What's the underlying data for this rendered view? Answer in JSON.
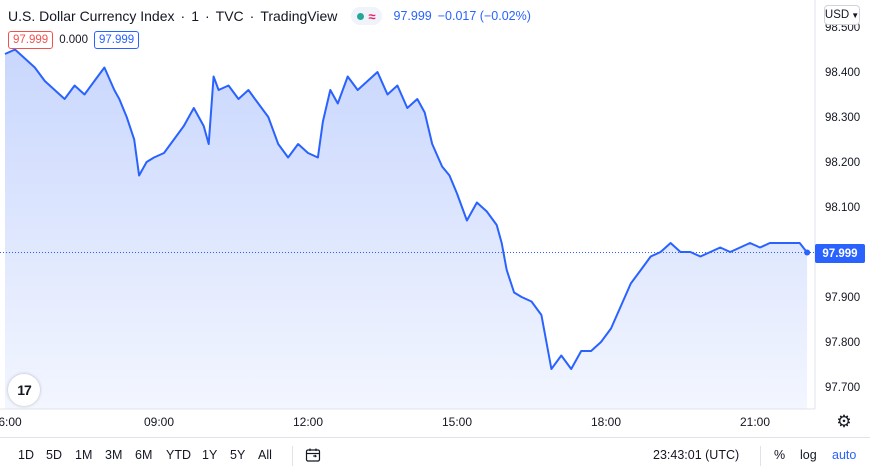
{
  "header": {
    "symbol": "U.S. Dollar Currency Index",
    "interval": "1",
    "exchange": "TVC",
    "source": "TradingView",
    "separator": "·",
    "status_icons": [
      "green-dot-icon",
      "wave-icon"
    ],
    "last_price": "97.999",
    "change": "−0.017 (−0.02%)"
  },
  "ohlc_boxes": {
    "bid": "97.999",
    "spread": "0.000",
    "ask": "97.999"
  },
  "currency": {
    "label": "USD",
    "icon": "chevron-down-icon"
  },
  "last_price_tag": "97.999",
  "colors": {
    "line": "#2962ff",
    "area_top": "#c9d7fd",
    "area_bottom": "#f3f6ff",
    "text": "#131722"
  },
  "toolbar": {
    "ranges": [
      "1D",
      "5D",
      "1M",
      "3M",
      "6M",
      "YTD",
      "1Y",
      "5Y",
      "All"
    ],
    "calendar_icon": "calendar-icon",
    "clock": "23:43:01 (UTC)",
    "percent": "%",
    "log": "log",
    "auto": "auto"
  },
  "chart_data": {
    "type": "area",
    "y_axis_labels": [
      "98.500",
      "98.400",
      "98.300",
      "98.200",
      "98.100",
      "97.999",
      "97.900",
      "97.800",
      "97.700"
    ],
    "x_axis_labels": [
      "6:00",
      "09:00",
      "12:00",
      "15:00",
      "18:00",
      "21:00"
    ],
    "ylim": [
      97.66,
      98.51
    ],
    "x_range_hours": [
      5.9,
      22.1
    ],
    "last_value": 97.999,
    "series": [
      {
        "points": [
          [
            5.9,
            98.44
          ],
          [
            6.1,
            98.45
          ],
          [
            6.3,
            98.43
          ],
          [
            6.5,
            98.41
          ],
          [
            6.7,
            98.38
          ],
          [
            6.9,
            98.36
          ],
          [
            7.1,
            98.34
          ],
          [
            7.3,
            98.37
          ],
          [
            7.5,
            98.35
          ],
          [
            7.7,
            98.38
          ],
          [
            7.9,
            98.41
          ],
          [
            8.1,
            98.36
          ],
          [
            8.2,
            98.34
          ],
          [
            8.35,
            98.3
          ],
          [
            8.5,
            98.25
          ],
          [
            8.6,
            98.17
          ],
          [
            8.75,
            98.2
          ],
          [
            8.9,
            98.21
          ],
          [
            9.1,
            98.22
          ],
          [
            9.3,
            98.25
          ],
          [
            9.5,
            98.28
          ],
          [
            9.7,
            98.32
          ],
          [
            9.9,
            98.28
          ],
          [
            10.0,
            98.24
          ],
          [
            10.1,
            98.39
          ],
          [
            10.2,
            98.36
          ],
          [
            10.4,
            98.37
          ],
          [
            10.6,
            98.34
          ],
          [
            10.8,
            98.36
          ],
          [
            11.0,
            98.33
          ],
          [
            11.2,
            98.3
          ],
          [
            11.4,
            98.24
          ],
          [
            11.6,
            98.21
          ],
          [
            11.8,
            98.24
          ],
          [
            12.0,
            98.22
          ],
          [
            12.2,
            98.21
          ],
          [
            12.3,
            98.29
          ],
          [
            12.45,
            98.36
          ],
          [
            12.6,
            98.33
          ],
          [
            12.8,
            98.39
          ],
          [
            13.0,
            98.36
          ],
          [
            13.2,
            98.38
          ],
          [
            13.4,
            98.4
          ],
          [
            13.6,
            98.35
          ],
          [
            13.8,
            98.37
          ],
          [
            14.0,
            98.32
          ],
          [
            14.2,
            98.34
          ],
          [
            14.35,
            98.31
          ],
          [
            14.5,
            98.24
          ],
          [
            14.7,
            98.19
          ],
          [
            14.85,
            98.17
          ],
          [
            15.0,
            98.13
          ],
          [
            15.2,
            98.07
          ],
          [
            15.4,
            98.11
          ],
          [
            15.6,
            98.09
          ],
          [
            15.8,
            98.06
          ],
          [
            15.9,
            98.02
          ],
          [
            16.0,
            97.96
          ],
          [
            16.15,
            97.91
          ],
          [
            16.3,
            97.9
          ],
          [
            16.5,
            97.89
          ],
          [
            16.7,
            97.86
          ],
          [
            16.8,
            97.8
          ],
          [
            16.9,
            97.74
          ],
          [
            17.1,
            97.77
          ],
          [
            17.3,
            97.74
          ],
          [
            17.5,
            97.78
          ],
          [
            17.7,
            97.78
          ],
          [
            17.9,
            97.8
          ],
          [
            18.1,
            97.83
          ],
          [
            18.3,
            97.88
          ],
          [
            18.5,
            97.93
          ],
          [
            18.7,
            97.96
          ],
          [
            18.9,
            97.99
          ],
          [
            19.1,
            98.0
          ],
          [
            19.3,
            98.02
          ],
          [
            19.5,
            98.0
          ],
          [
            19.7,
            98.0
          ],
          [
            19.9,
            97.99
          ],
          [
            20.1,
            98.0
          ],
          [
            20.3,
            98.01
          ],
          [
            20.5,
            98.0
          ],
          [
            20.7,
            98.01
          ],
          [
            20.9,
            98.02
          ],
          [
            21.1,
            98.01
          ],
          [
            21.3,
            98.02
          ],
          [
            21.5,
            98.02
          ],
          [
            21.7,
            98.02
          ],
          [
            21.9,
            98.02
          ],
          [
            22.05,
            97.999
          ]
        ]
      }
    ]
  }
}
